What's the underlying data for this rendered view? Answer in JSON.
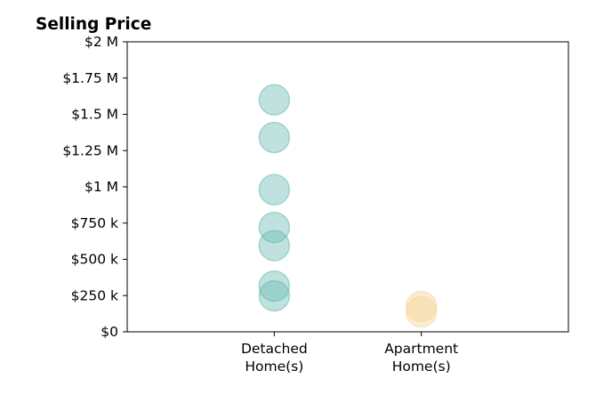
{
  "chart_data": {
    "type": "scatter",
    "title": "Selling Price",
    "xlabel": "",
    "ylabel": "",
    "categories": [
      [
        "Detached",
        "Home(s)"
      ],
      [
        "Apartment",
        "Home(s)"
      ]
    ],
    "ylim": [
      0,
      2000000
    ],
    "yticks": [
      {
        "value": 0,
        "label": "$0"
      },
      {
        "value": 250000,
        "label": "$250 k"
      },
      {
        "value": 500000,
        "label": "$500 k"
      },
      {
        "value": 750000,
        "label": "$750 k"
      },
      {
        "value": 1000000,
        "label": "$1 M"
      },
      {
        "value": 1250000,
        "label": "$1.25 M"
      },
      {
        "value": 1500000,
        "label": "$1.5 M"
      },
      {
        "value": 1750000,
        "label": "$1.75 M"
      },
      {
        "value": 2000000,
        "label": "$2 M"
      }
    ],
    "grid": false,
    "legend": "none",
    "series": [
      {
        "category_index": 0,
        "color": "#66bbb0",
        "values": [
          1600000,
          1340000,
          980000,
          720000,
          595000,
          315000,
          248000
        ]
      },
      {
        "category_index": 1,
        "color": "#f5d596",
        "values": [
          175000,
          138000
        ]
      }
    ]
  }
}
